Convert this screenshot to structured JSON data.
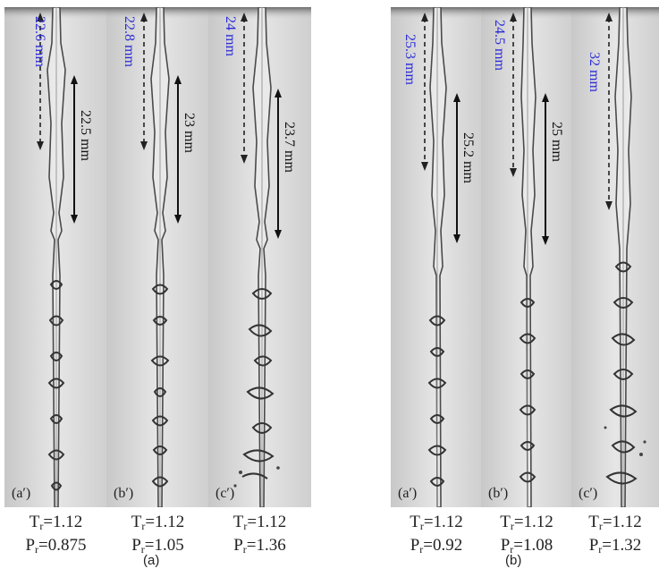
{
  "groups": [
    {
      "label": "(a)",
      "panels": [
        {
          "id": "a-a",
          "panel_label": "(a′)",
          "upper_length": "22.6 mm",
          "lower_length": "22.5 mm",
          "Tr": "Tᵣ=1.12",
          "Pr_text": "Pᵣ=0.875"
        },
        {
          "id": "a-b",
          "panel_label": "(b′)",
          "upper_length": "22.8 mm",
          "lower_length": "23 mm",
          "Tr": "Tᵣ=1.12",
          "Pr_text": "Pᵣ=1.05"
        },
        {
          "id": "a-c",
          "panel_label": "(c′)",
          "upper_length": "24 mm",
          "lower_length": "23.7 mm",
          "Tr": "Tᵣ=1.12",
          "Pr_text": "Pᵣ=1.36"
        }
      ]
    },
    {
      "label": "(b)",
      "panels": [
        {
          "id": "b-a",
          "panel_label": "(a′)",
          "upper_length": "25.3 mm",
          "lower_length": "25.2 mm",
          "Tr": "Tᵣ=1.12",
          "Pr_text": "Pᵣ=0.92"
        },
        {
          "id": "b-b",
          "panel_label": "(b′)",
          "upper_length": "24.5 mm",
          "lower_length": "25 mm",
          "Tr": "Tᵣ=1.12",
          "Pr_text": "Pᵣ=1.08"
        },
        {
          "id": "b-c",
          "panel_label": "(c′)",
          "upper_length": "32 mm",
          "lower_length": "",
          "Tr": "Tᵣ=1.12",
          "Pr_text": "Pᵣ=1.32"
        }
      ]
    }
  ],
  "colors": {
    "measure_blue": "#2b2bd9",
    "measure_black": "#111111",
    "background": "#ffffff"
  }
}
